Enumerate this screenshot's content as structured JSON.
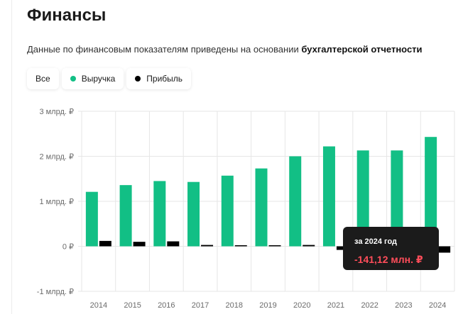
{
  "header": {
    "title": "Финансы",
    "subtitle_prefix": "Данные по финансовым показателям приведены на основании ",
    "subtitle_bold": "бухгалтерской отчетности"
  },
  "filters": [
    {
      "label": "Все",
      "color": ""
    },
    {
      "label": "Выручка",
      "color": "#12bf85"
    },
    {
      "label": "Прибыль",
      "color": "#000000"
    }
  ],
  "tooltip": {
    "period": "за 2024 год",
    "value": "-141,12 млн. ₽"
  },
  "chart_data": {
    "type": "bar",
    "categories": [
      "2014",
      "2015",
      "2016",
      "2017",
      "2018",
      "2019",
      "2020",
      "2021",
      "2022",
      "2023",
      "2024"
    ],
    "series": [
      {
        "name": "Выручка",
        "color": "#12bf85",
        "values": [
          1.21,
          1.36,
          1.45,
          1.43,
          1.57,
          1.73,
          2.0,
          2.22,
          2.13,
          2.13,
          2.43
        ]
      },
      {
        "name": "Прибыль",
        "color": "#000000",
        "values": [
          0.12,
          0.1,
          0.11,
          0.03,
          0.01,
          0.005,
          0.03,
          -0.08,
          -0.12,
          0.16,
          -0.14112
        ]
      }
    ],
    "ylim": [
      -1,
      3
    ],
    "yticks": [
      {
        "value": 3,
        "label": "3 млрд. ₽"
      },
      {
        "value": 2,
        "label": "2 млрд. ₽"
      },
      {
        "value": 1,
        "label": "1 млрд. ₽"
      },
      {
        "value": 0,
        "label": "0 ₽"
      },
      {
        "value": -1,
        "label": "-1 млрд. ₽"
      }
    ],
    "grid": true,
    "highlighted_category": "2024"
  }
}
